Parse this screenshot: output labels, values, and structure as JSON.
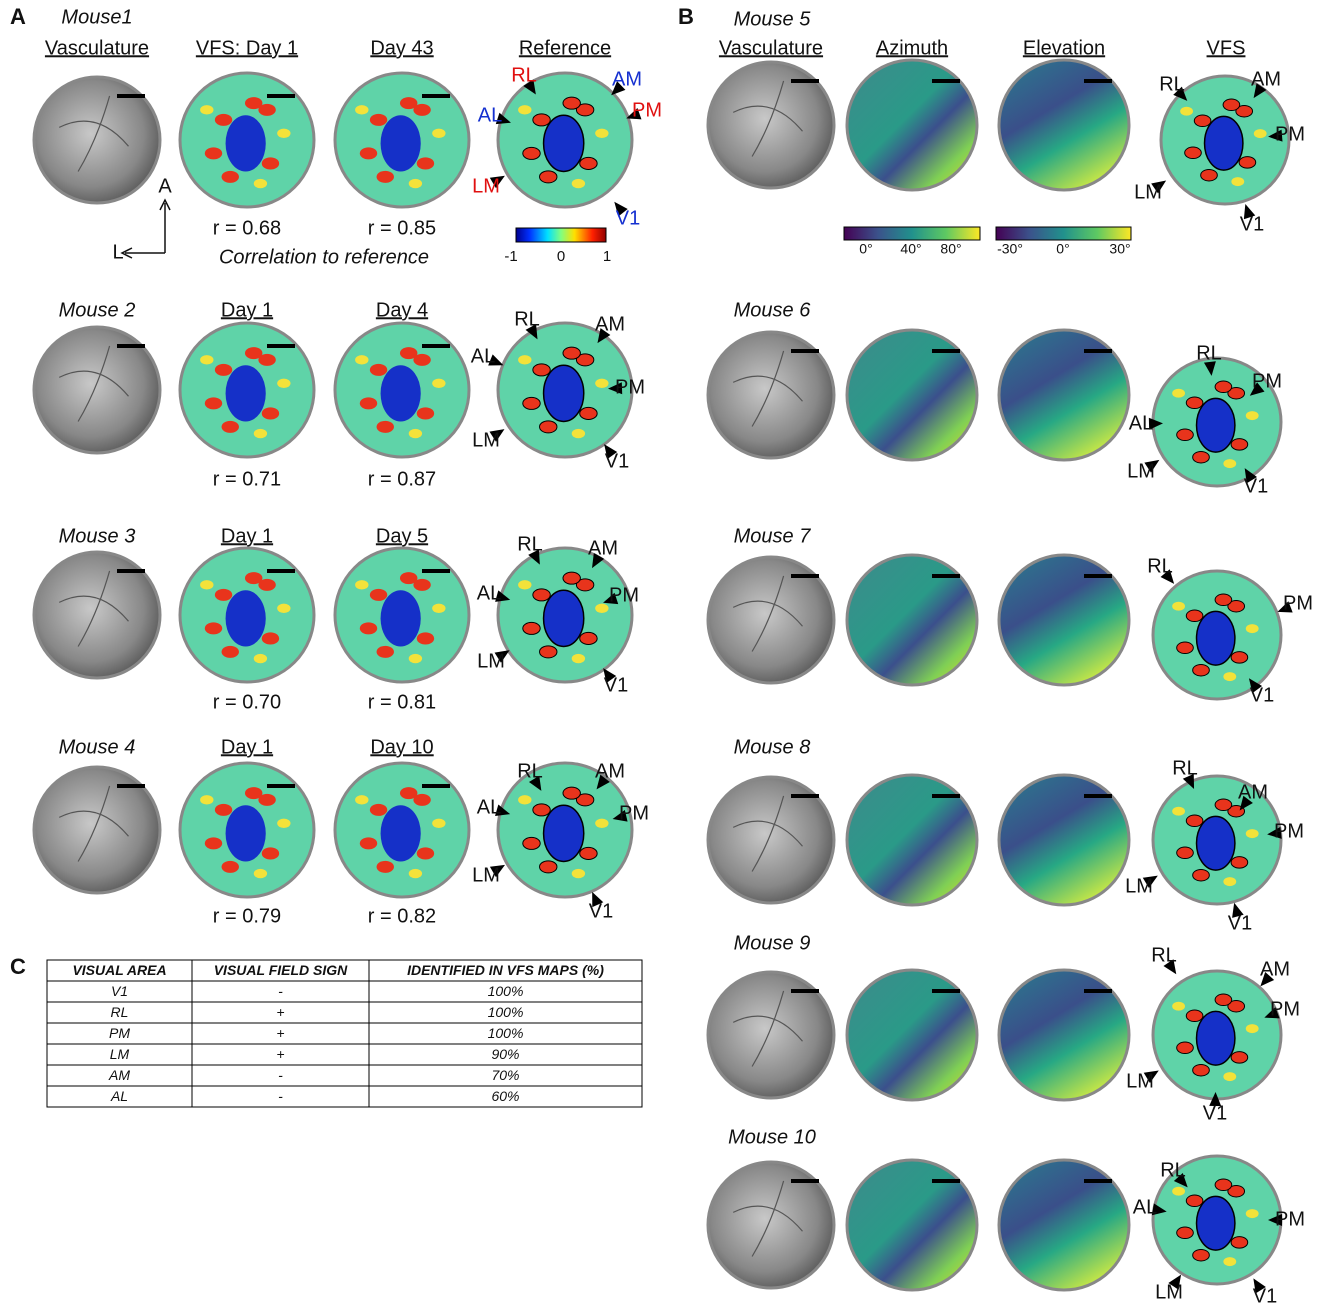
{
  "panel_a": {
    "label": "A",
    "columns": [
      "Vasculature",
      "VFS: Day 1",
      "Day 43",
      "Reference"
    ],
    "caption": "Correlation to reference",
    "colorbar": [
      "-1",
      "0",
      "1"
    ],
    "axes": [
      "A",
      "L"
    ],
    "mice": [
      {
        "name": "Mouse1",
        "r": [
          "r = 0.68",
          "r = 0.85"
        ],
        "areas": [
          {
            "label": "RL",
            "color": "#e01010"
          },
          {
            "label": "AM",
            "color": "#1530d0"
          },
          {
            "label": "AL",
            "color": "#1530d0"
          },
          {
            "label": "PM",
            "color": "#e01010"
          },
          {
            "label": "LM",
            "color": "#e01010"
          },
          {
            "label": "V1",
            "color": "#1530d0"
          }
        ]
      },
      {
        "name": "Mouse 2",
        "days": [
          "Day 1",
          "Day 4"
        ],
        "r": [
          "r = 0.71",
          "r = 0.87"
        ],
        "areas": [
          {
            "label": "RL"
          },
          {
            "label": "AM"
          },
          {
            "label": "AL"
          },
          {
            "label": "PM"
          },
          {
            "label": "LM"
          },
          {
            "label": "V1"
          }
        ]
      },
      {
        "name": "Mouse 3",
        "days": [
          "Day 1",
          "Day 5"
        ],
        "r": [
          "r = 0.70",
          "r = 0.81"
        ],
        "areas": [
          {
            "label": "RL"
          },
          {
            "label": "AM"
          },
          {
            "label": "AL"
          },
          {
            "label": "PM"
          },
          {
            "label": "LM"
          },
          {
            "label": "V1"
          }
        ]
      },
      {
        "name": "Mouse 4",
        "days": [
          "Day 1",
          "Day 10"
        ],
        "r": [
          "r = 0.79",
          "r = 0.82"
        ],
        "areas": [
          {
            "label": "RL"
          },
          {
            "label": "AM"
          },
          {
            "label": "AL"
          },
          {
            "label": "PM"
          },
          {
            "label": "LM"
          },
          {
            "label": "V1"
          }
        ]
      }
    ]
  },
  "panel_b": {
    "label": "B",
    "columns": [
      "Vasculature",
      "Azimuth",
      "Elevation",
      "VFS"
    ],
    "azimuth_colorbar": [
      "0°",
      "40°",
      "80°"
    ],
    "elevation_colorbar": [
      "-30°",
      "0°",
      "30°"
    ],
    "mice": [
      {
        "name": "Mouse 5",
        "areas": [
          {
            "label": "RL"
          },
          {
            "label": "AM"
          },
          {
            "label": "PM"
          },
          {
            "label": "LM"
          },
          {
            "label": "V1"
          }
        ]
      },
      {
        "name": "Mouse 6",
        "areas": [
          {
            "label": "RL"
          },
          {
            "label": "PM"
          },
          {
            "label": "AL"
          },
          {
            "label": "LM"
          },
          {
            "label": "V1"
          }
        ]
      },
      {
        "name": "Mouse 7",
        "areas": [
          {
            "label": "RL"
          },
          {
            "label": "PM"
          },
          {
            "label": "V1"
          }
        ]
      },
      {
        "name": "Mouse 8",
        "areas": [
          {
            "label": "RL"
          },
          {
            "label": "AM"
          },
          {
            "label": "PM"
          },
          {
            "label": "LM"
          },
          {
            "label": "V1"
          }
        ]
      },
      {
        "name": "Mouse 9",
        "areas": [
          {
            "label": "RL"
          },
          {
            "label": "AM"
          },
          {
            "label": "PM"
          },
          {
            "label": "LM"
          },
          {
            "label": "V1"
          }
        ]
      },
      {
        "name": "Mouse 10",
        "areas": [
          {
            "label": "RL"
          },
          {
            "label": "AL"
          },
          {
            "label": "PM"
          },
          {
            "label": "LM"
          },
          {
            "label": "V1"
          }
        ]
      }
    ]
  },
  "panel_c": {
    "label": "C",
    "header": [
      "VISUAL AREA",
      "VISUAL FIELD SIGN",
      "IDENTIFIED IN VFS MAPS (%)"
    ],
    "rows": [
      [
        "V1",
        "-",
        "100%"
      ],
      [
        "RL",
        "+",
        "100%"
      ],
      [
        "PM",
        "+",
        "100%"
      ],
      [
        "LM",
        "+",
        "90%"
      ],
      [
        "AM",
        "-",
        "70%"
      ],
      [
        "AL",
        "-",
        "60%"
      ]
    ]
  }
}
